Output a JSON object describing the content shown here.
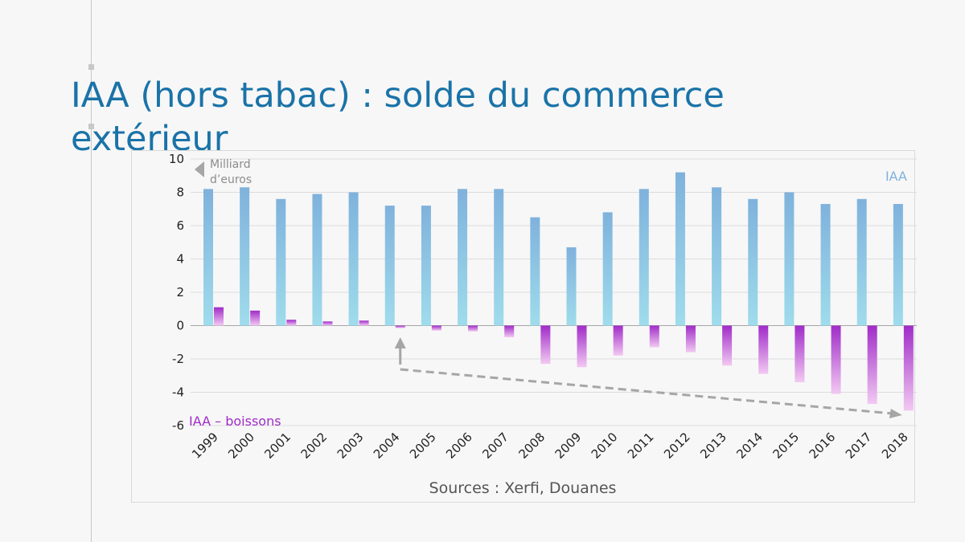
{
  "slide": {
    "title": "IAA (hors tabac) : solde du commerce extérieur",
    "source": "Sources : Xerfi, Douanes"
  },
  "colors": {
    "iaa_top": "#7fb2dc",
    "iaa_bottom": "#9fdcec",
    "boissons_dark": "#a02cc8",
    "boissons_light": "#f2c9f2",
    "title": "#1a73a8",
    "arrow": "#a6a6a6"
  },
  "chart_data": {
    "type": "bar",
    "categories": [
      "1999",
      "2000",
      "2001",
      "2002",
      "2003",
      "2004",
      "2005",
      "2006",
      "2007",
      "2008",
      "2009",
      "2010",
      "2011",
      "2012",
      "2013",
      "2014",
      "2015",
      "2016",
      "2017",
      "2018"
    ],
    "series": [
      {
        "name": "IAA",
        "values": [
          8.2,
          8.3,
          7.6,
          7.9,
          8.0,
          7.2,
          7.2,
          8.2,
          8.2,
          6.5,
          4.7,
          6.8,
          8.2,
          9.2,
          8.3,
          7.6,
          8.0,
          7.3,
          7.6,
          7.3
        ]
      },
      {
        "name": "IAA – boissons",
        "values": [
          1.1,
          0.9,
          0.35,
          0.25,
          0.3,
          -0.15,
          -0.3,
          -0.35,
          -0.7,
          -2.3,
          -2.5,
          -1.8,
          -1.3,
          -1.6,
          -2.4,
          -2.9,
          -3.4,
          -4.1,
          -4.7,
          -5.1
        ]
      }
    ],
    "ylim": [
      -6,
      10
    ],
    "yticks": [
      -6,
      -4,
      -2,
      0,
      2,
      4,
      6,
      8,
      10
    ],
    "ylabel": "Milliard d’euros",
    "grid": true,
    "legend": "series labels placed directly on chart",
    "annotation": "dashed arrow showing worsening trend of boissons balance from 2004 to 2018"
  }
}
